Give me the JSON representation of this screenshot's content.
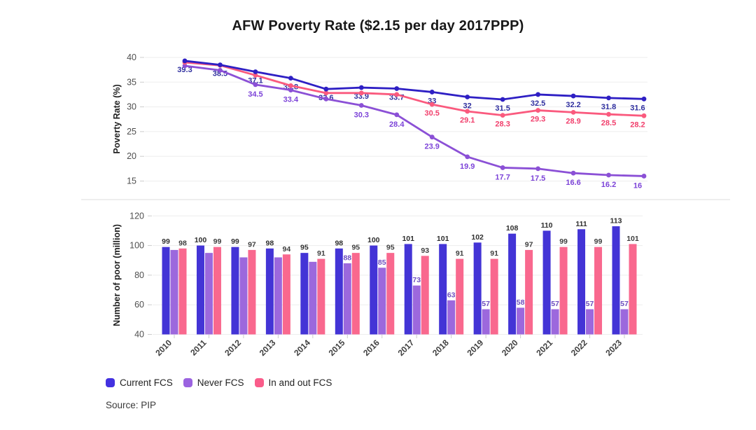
{
  "title": "AFW Poverty Rate ($2.15 per day 2017PPP)",
  "source": "Source: PIP",
  "colors": {
    "current_fcs": "#4334d6",
    "never_fcs": "#9c68dd",
    "in_and_out_fcs": "#f9688e",
    "grid": "#ededed",
    "tick": "#cccccc",
    "tick_text": "#4f4f4f"
  },
  "legend": {
    "position": "bottom-left",
    "items": [
      {
        "label": "Current FCS",
        "color": "#4331e0"
      },
      {
        "label": "Never FCS",
        "color": "#9b63e0"
      },
      {
        "label": "In and out FCS",
        "color": "#fa5c8a"
      }
    ]
  },
  "chart_data": [
    {
      "type": "line",
      "title": "AFW Poverty Rate ($2.15 per day 2017PPP)",
      "xlabel": "",
      "ylabel": "Poverty Rate (%)",
      "x": [
        2010,
        2011,
        2012,
        2013,
        2014,
        2015,
        2016,
        2017,
        2018,
        2019,
        2020,
        2021,
        2022,
        2023
      ],
      "yticks": [
        15,
        20,
        25,
        30,
        35,
        40
      ],
      "ylim": [
        15,
        40
      ],
      "grid": true,
      "series": [
        {
          "name": "Current FCS",
          "color": "#2e1fc4",
          "label_color": "#2f2f9f",
          "values": [
            39.3,
            38.5,
            37.1,
            35.8,
            33.6,
            33.9,
            33.7,
            33,
            32,
            31.5,
            32.5,
            32.2,
            31.8,
            31.6
          ],
          "labels": [
            "39.3",
            "38.5",
            "37.1",
            "35.8",
            "33.6",
            "33.9",
            "33.7",
            "33",
            "32",
            "31.5",
            "32.5",
            "32.2",
            "31.8",
            "31.6"
          ]
        },
        {
          "name": "Never FCS",
          "color": "#8b50d6",
          "label_color": "#7c43d8",
          "values": [
            38.3,
            37.4,
            34.5,
            33.4,
            31.6,
            30.3,
            28.4,
            23.9,
            19.9,
            17.7,
            17.5,
            16.6,
            16.2,
            16
          ],
          "labels": [
            null,
            null,
            "34.5",
            "33.4",
            null,
            "30.3",
            "28.4",
            "23.9",
            "19.9",
            "17.7",
            "17.5",
            "16.6",
            "16.2",
            "16"
          ]
        },
        {
          "name": "In and out FCS",
          "color": "#fa5a7e",
          "label_color": "#f13f6c",
          "values": [
            39.0,
            38.4,
            36.4,
            34.3,
            32.8,
            32.8,
            32.5,
            30.5,
            29.1,
            28.3,
            29.3,
            28.9,
            28.5,
            28.2
          ],
          "labels": [
            null,
            null,
            null,
            null,
            null,
            null,
            null,
            "30.5",
            "29.1",
            "28.3",
            "29.3",
            "28.9",
            "28.5",
            "28.2"
          ]
        }
      ]
    },
    {
      "type": "bar",
      "title": "",
      "xlabel": "",
      "ylabel": "Number of poor (million)",
      "categories": [
        2010,
        2011,
        2012,
        2013,
        2014,
        2015,
        2016,
        2017,
        2018,
        2019,
        2020,
        2021,
        2022,
        2023
      ],
      "yticks": [
        40,
        60,
        80,
        100,
        120
      ],
      "ylim": [
        40,
        120
      ],
      "grid": true,
      "series": [
        {
          "name": "Current FCS",
          "color": "#4334d6",
          "label_color": "#2e2e2e",
          "values": [
            99,
            100,
            99,
            98,
            95,
            98,
            100,
            101,
            101,
            102,
            108,
            110,
            111,
            113
          ],
          "labels": [
            "99",
            "100",
            "99",
            "98",
            "95",
            "98",
            "100",
            "101",
            "101",
            "102",
            "108",
            "110",
            "111",
            "113"
          ]
        },
        {
          "name": "Never FCS",
          "color": "#9c68dd",
          "label_color": "#6e4ec0",
          "values": [
            97,
            95,
            92,
            92,
            89,
            88,
            85,
            73,
            63,
            57,
            58,
            57,
            57,
            57
          ],
          "labels": [
            null,
            null,
            null,
            null,
            null,
            "88",
            "85",
            "73",
            "63",
            "57",
            "58",
            "57",
            "57",
            "57"
          ]
        },
        {
          "name": "In and out FCS",
          "color": "#f9688e",
          "label_color": "#3d3d3d",
          "values": [
            98,
            99,
            97,
            94,
            91,
            95,
            95,
            93,
            91,
            91,
            97,
            99,
            99,
            101
          ],
          "labels": [
            "98",
            "99",
            "97",
            "94",
            "91",
            "95",
            "95",
            "93",
            "91",
            "91",
            "97",
            "99",
            "99",
            "101"
          ]
        }
      ]
    }
  ]
}
